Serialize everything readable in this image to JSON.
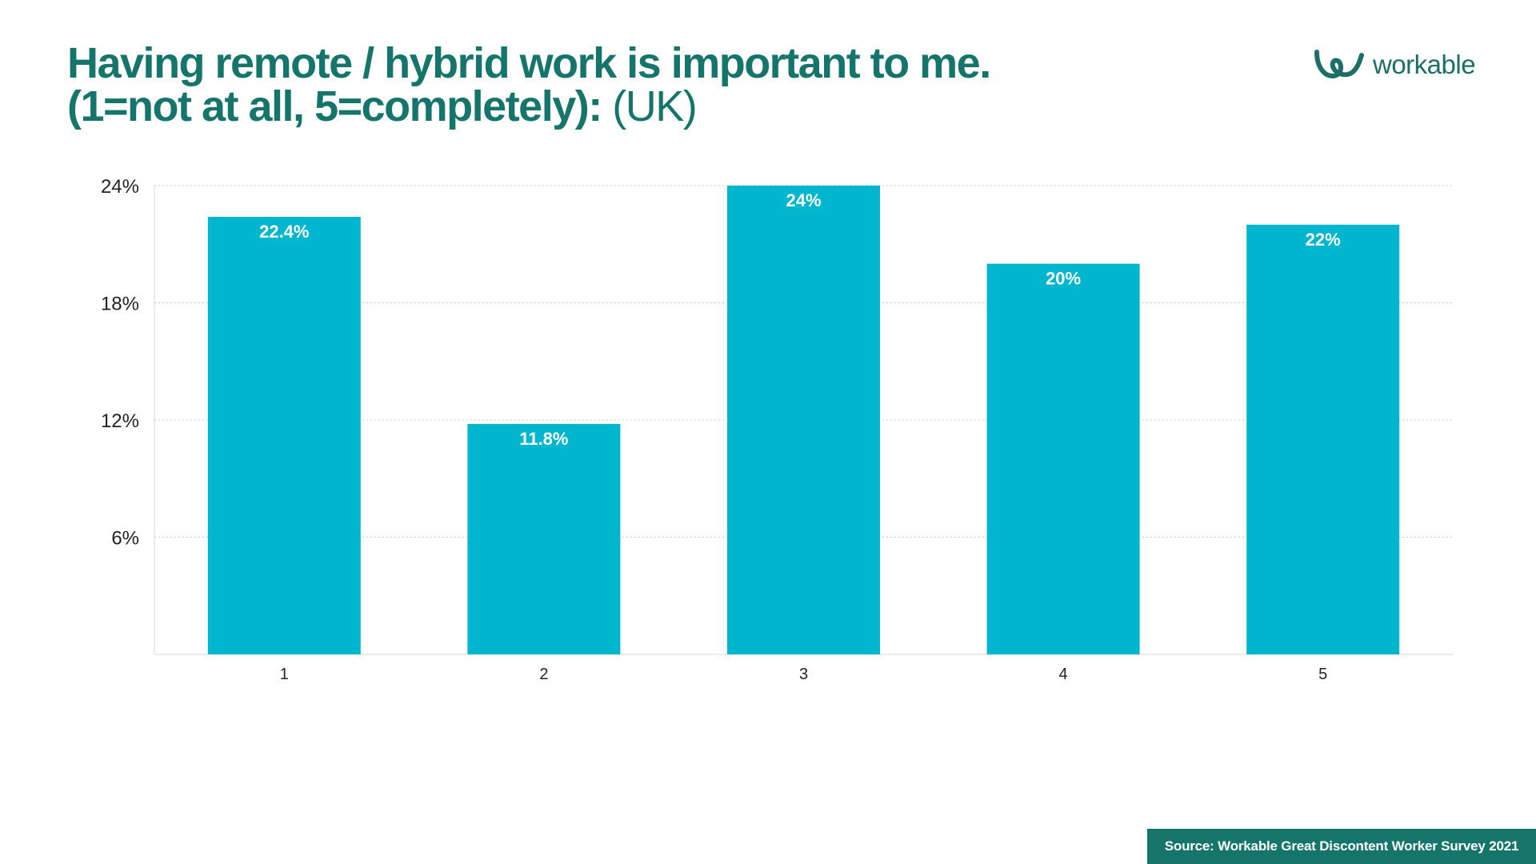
{
  "title": {
    "line1": "Having remote / hybrid work is important to me.",
    "line2_bold": "(1=not at all, 5=completely):",
    "line2_light": "(UK)"
  },
  "logo": {
    "text": "workable",
    "icon": "workable-logo-icon",
    "color": "#1c6e66"
  },
  "source": "Source: Workable Great Discontent Worker Survey 2021",
  "colors": {
    "bar": "#00b6ce",
    "title": "#16756b",
    "source_bg": "#16756b",
    "grid": "#c8c8c8"
  },
  "chart_data": {
    "type": "bar",
    "categories": [
      "1",
      "2",
      "3",
      "4",
      "5"
    ],
    "values": [
      22.4,
      11.8,
      24,
      20,
      22
    ],
    "data_labels": [
      "22.4%",
      "11.8%",
      "24%",
      "20%",
      "22%"
    ],
    "yticks": [
      "6%",
      "12%",
      "18%",
      "24%"
    ],
    "ytick_values": [
      6,
      12,
      18,
      24
    ],
    "ylim": [
      0,
      24
    ],
    "grid": true,
    "xlabel": "",
    "ylabel": ""
  }
}
